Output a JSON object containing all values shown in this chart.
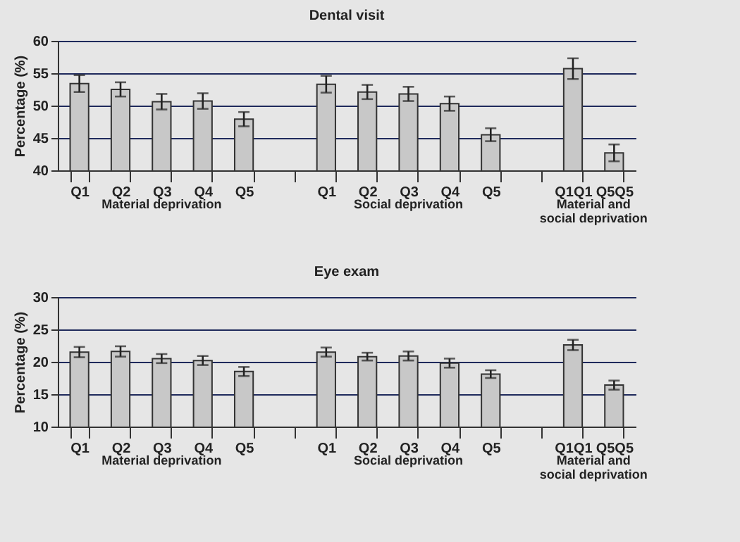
{
  "chart_data": [
    {
      "type": "bar",
      "title": "Dental visit",
      "ylabel": "Percentage (%)",
      "categories": [
        "Q1",
        "Q2",
        "Q3",
        "Q4",
        "Q5",
        null,
        "Q1",
        "Q2",
        "Q3",
        "Q4",
        "Q5",
        null,
        "Q1Q1",
        "Q5Q5"
      ],
      "values": [
        53.4,
        52.5,
        50.6,
        50.7,
        47.9,
        null,
        53.3,
        52.1,
        51.8,
        50.3,
        45.5,
        null,
        55.7,
        42.7
      ],
      "errors": [
        1.3,
        1.1,
        1.2,
        1.2,
        1.1,
        null,
        1.3,
        1.1,
        1.1,
        1.1,
        1.0,
        null,
        1.6,
        1.3
      ],
      "color": "#c8c8c8",
      "ylim": [
        40,
        60
      ],
      "yticks": [
        40,
        45,
        50,
        55,
        60
      ],
      "grid": "y",
      "annotations": [
        "Material deprivation",
        "Social deprivation",
        "Material and social deprivation"
      ]
    },
    {
      "type": "bar",
      "title": "Eye exam",
      "ylabel": "Percentage (%)",
      "categories": [
        "Q1",
        "Q2",
        "Q3",
        "Q4",
        "Q5",
        null,
        "Q1",
        "Q2",
        "Q3",
        "Q4",
        "Q5",
        null,
        "Q1Q1",
        "Q5Q5"
      ],
      "values": [
        21.5,
        21.6,
        20.5,
        20.2,
        18.5,
        null,
        21.5,
        20.8,
        20.9,
        19.8,
        18.1,
        null,
        22.6,
        16.4
      ],
      "errors": [
        0.8,
        0.8,
        0.7,
        0.7,
        0.7,
        null,
        0.7,
        0.6,
        0.7,
        0.7,
        0.6,
        null,
        0.8,
        0.7
      ],
      "color": "#c8c8c8",
      "ylim": [
        10,
        30
      ],
      "yticks": [
        10,
        15,
        20,
        25,
        30
      ],
      "grid": "y",
      "annotations": [
        "Material deprivation",
        "Social deprivation",
        "Material and social deprivation"
      ]
    }
  ]
}
